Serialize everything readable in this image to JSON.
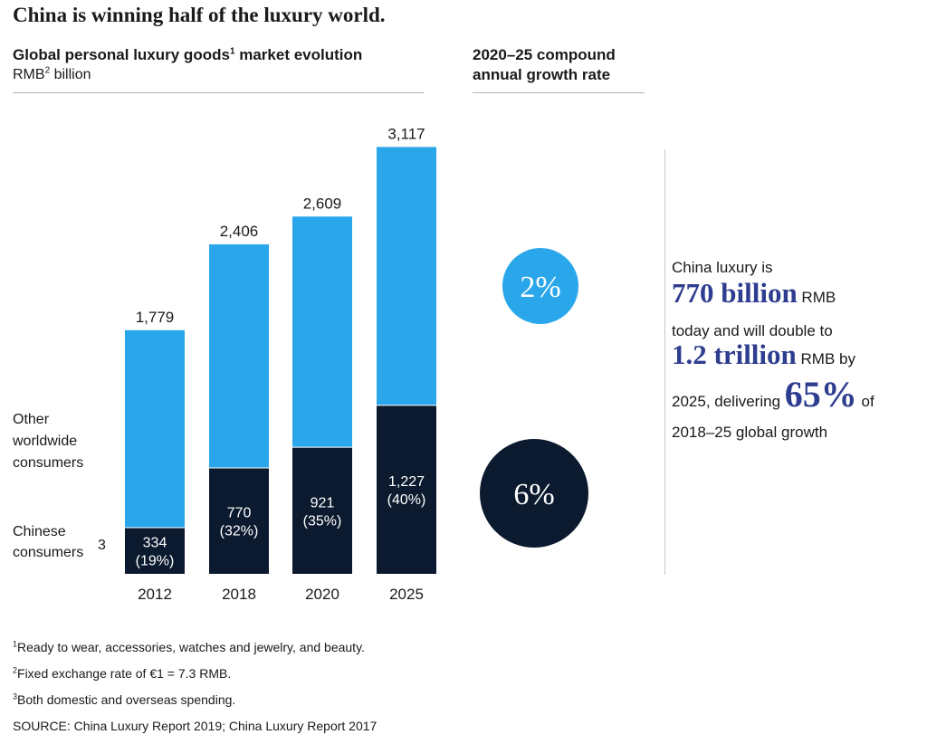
{
  "page": {
    "title": "China is winning half of the luxury world.",
    "chart_title": "Global personal luxury goods",
    "chart_title_sup": "1",
    "chart_title_rest": " market evolution",
    "unit_main": "RMB",
    "unit_sup": "2",
    "unit_rest": " billion",
    "cagr_header": "2020–25 compound annual growth rate",
    "callout": {
      "line1": "China luxury is",
      "big1": "770 billion",
      "line2_rest": " RMB",
      "line3": "today and will double to",
      "big2": "1.2 trillion",
      "line4_rest": " RMB by",
      "line5_pre": "2025, delivering ",
      "big3": "65%",
      "line5_post": " of",
      "line6": "2018–25 global growth"
    },
    "footnotes": [
      {
        "sup": "1",
        "text": "Ready to wear, accessories, watches and jewelry, and beauty."
      },
      {
        "sup": "2",
        "text": "Fixed exchange rate of €1 = 7.3 RMB."
      },
      {
        "sup": "3",
        "text": "Both domestic and overseas spending."
      }
    ],
    "source": "SOURCE: China Luxury Report 2019; China Luxury Report 2017"
  },
  "chart_data": {
    "type": "bar",
    "stacked": true,
    "categories": [
      "2012",
      "2018",
      "2020",
      "2025"
    ],
    "series": [
      {
        "name": "Chinese consumers",
        "name_sup": "3",
        "values": [
          334,
          770,
          921,
          1227
        ],
        "shares": [
          "(19%)",
          "(32%)",
          "(35%)",
          "(40%)"
        ],
        "color": "#0b1a2e"
      },
      {
        "name": "Other worldwide consumers",
        "values": [
          1445,
          1636,
          1688,
          1890
        ],
        "color": "#2aa7ea"
      }
    ],
    "totals": [
      1779,
      2406,
      2609,
      3117
    ],
    "total_labels": [
      "1,779",
      "2,406",
      "2,609",
      "3,117"
    ],
    "segment_labels": [
      "334",
      "770",
      "921",
      "1,227"
    ],
    "cagr": [
      {
        "series": "Other worldwide consumers",
        "value": "2%",
        "color": "#2aa7ea"
      },
      {
        "series": "Chinese consumers",
        "value": "6%",
        "color": "#0b1a2e"
      }
    ],
    "grid": false
  }
}
